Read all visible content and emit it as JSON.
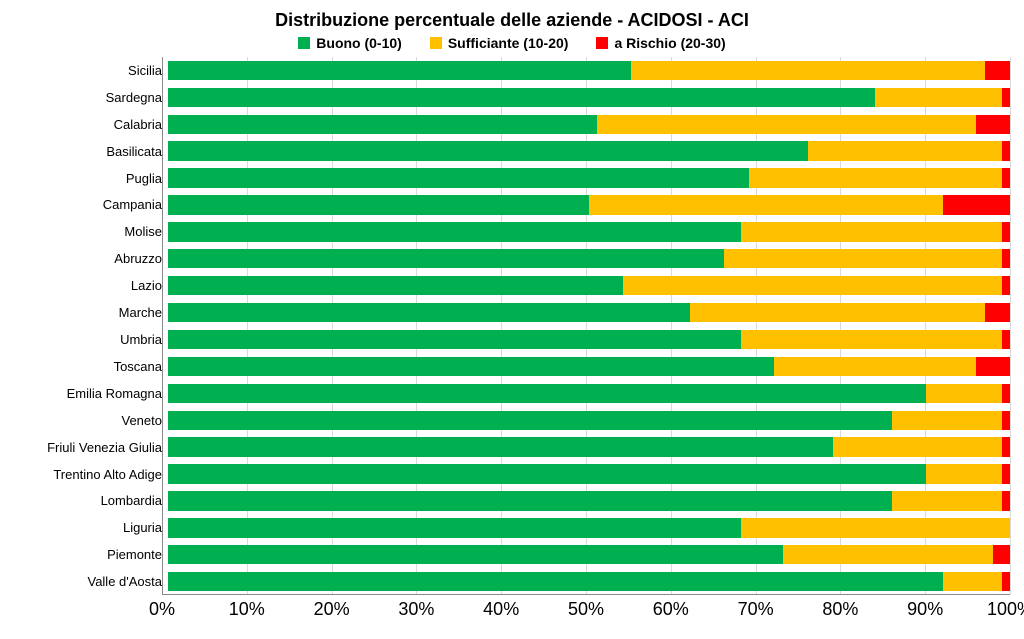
{
  "chart": {
    "type": "stacked-horizontal-bar-100pct",
    "title": "Distribuzione percentuale delle aziende - ACIDOSI - ACI",
    "title_fontsize": 18,
    "title_fontweight": "bold",
    "background_color": "#ffffff",
    "grid_color": "#d9d9d9",
    "axis_line_color": "#8a8a8a",
    "xaxis": {
      "min": 0,
      "max": 100,
      "tick_step": 10,
      "tick_labels": [
        "0%",
        "10%",
        "20%",
        "30%",
        "40%",
        "50%",
        "60%",
        "70%",
        "80%",
        "90%",
        "100%"
      ],
      "tick_fontsize": 18
    },
    "ylabel_fontsize": 13,
    "legend": {
      "position": "top-center",
      "fontsize": 14,
      "fontweight": "bold",
      "items": [
        {
          "label": "Buono (0-10)",
          "color": "#00b050"
        },
        {
          "label": "Sufficiante (10-20)",
          "color": "#ffc000"
        },
        {
          "label": "a Rischio (20-30)",
          "color": "#ff0000"
        }
      ]
    },
    "series_colors": {
      "buono": "#00b050",
      "sufficiente": "#ffc000",
      "rischio": "#ff0000"
    },
    "bar_height_ratio": 0.72,
    "categories": [
      {
        "label": "Sicilia",
        "values": {
          "buono": 55,
          "sufficiente": 42,
          "rischio": 3
        }
      },
      {
        "label": "Sardegna",
        "values": {
          "buono": 84,
          "sufficiente": 15,
          "rischio": 1
        }
      },
      {
        "label": "Calabria",
        "values": {
          "buono": 51,
          "sufficiente": 45,
          "rischio": 4
        }
      },
      {
        "label": "Basilicata",
        "values": {
          "buono": 76,
          "sufficiente": 23,
          "rischio": 1
        }
      },
      {
        "label": "Puglia",
        "values": {
          "buono": 69,
          "sufficiente": 30,
          "rischio": 1
        }
      },
      {
        "label": "Campania",
        "values": {
          "buono": 50,
          "sufficiente": 42,
          "rischio": 8
        }
      },
      {
        "label": "Molise",
        "values": {
          "buono": 68,
          "sufficiente": 31,
          "rischio": 1
        }
      },
      {
        "label": "Abruzzo",
        "values": {
          "buono": 66,
          "sufficiente": 33,
          "rischio": 1
        }
      },
      {
        "label": "Lazio",
        "values": {
          "buono": 54,
          "sufficiente": 45,
          "rischio": 1
        }
      },
      {
        "label": "Marche",
        "values": {
          "buono": 62,
          "sufficiente": 35,
          "rischio": 3
        }
      },
      {
        "label": "Umbria",
        "values": {
          "buono": 68,
          "sufficiente": 31,
          "rischio": 1
        }
      },
      {
        "label": "Toscana",
        "values": {
          "buono": 72,
          "sufficiente": 24,
          "rischio": 4
        }
      },
      {
        "label": "Emilia Romagna",
        "values": {
          "buono": 90,
          "sufficiente": 9,
          "rischio": 1
        }
      },
      {
        "label": "Veneto",
        "values": {
          "buono": 86,
          "sufficiente": 13,
          "rischio": 1
        }
      },
      {
        "label": "Friuli Venezia Giulia",
        "values": {
          "buono": 79,
          "sufficiente": 20,
          "rischio": 1
        }
      },
      {
        "label": "Trentino Alto Adige",
        "values": {
          "buono": 90,
          "sufficiente": 9,
          "rischio": 1
        }
      },
      {
        "label": "Lombardia",
        "values": {
          "buono": 86,
          "sufficiente": 13,
          "rischio": 1
        }
      },
      {
        "label": "Liguria",
        "values": {
          "buono": 68,
          "sufficiente": 32,
          "rischio": 0
        }
      },
      {
        "label": "Piemonte",
        "values": {
          "buono": 73,
          "sufficiente": 25,
          "rischio": 2
        }
      },
      {
        "label": "Valle d'Aosta",
        "values": {
          "buono": 92,
          "sufficiente": 7,
          "rischio": 1
        }
      }
    ]
  }
}
